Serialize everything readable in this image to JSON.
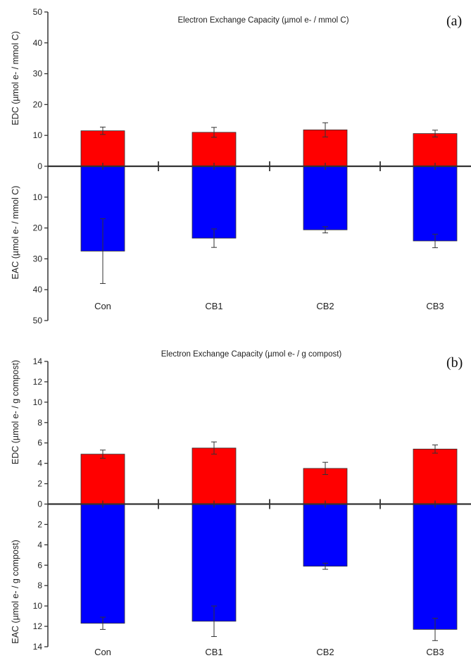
{
  "chart_data": [
    {
      "type": "bar",
      "panel_label": "(a)",
      "title": "Electron Exchange Capacity (µmol e- / mmol C)",
      "ylabel_top": "EDC (µmol e- / mmol C)",
      "ylabel_bottom": "EAC (µmol e- / mmol C)",
      "categories": [
        "Con",
        "CB1",
        "CB2",
        "CB3"
      ],
      "ylim": [
        -50,
        50
      ],
      "yticks": [
        50,
        40,
        30,
        20,
        10,
        0,
        10,
        20,
        30,
        40,
        50
      ],
      "grid": false,
      "series": [
        {
          "name": "EDC",
          "color": "#ff0000",
          "values": [
            11.5,
            11.0,
            11.8,
            10.6
          ],
          "err": [
            1.2,
            1.6,
            2.3,
            1.1
          ]
        },
        {
          "name": "EAC",
          "color": "#0000ff",
          "values": [
            -27.5,
            -23.3,
            -20.6,
            -24.2
          ],
          "err": [
            10.5,
            3.0,
            1.0,
            2.2
          ]
        }
      ]
    },
    {
      "type": "bar",
      "panel_label": "(b)",
      "title": "Electron Exchange Capacity (µmol e- / g compost)",
      "ylabel_top": "EDC (µmol e- / g compost)",
      "ylabel_bottom": "EAC (µmol e- / g compost)",
      "categories": [
        "Con",
        "CB1",
        "CB2",
        "CB3"
      ],
      "ylim": [
        -14,
        14
      ],
      "yticks": [
        14,
        12,
        10,
        8,
        6,
        4,
        2,
        0,
        2,
        4,
        6,
        8,
        10,
        12,
        14
      ],
      "grid": false,
      "series": [
        {
          "name": "EDC",
          "color": "#ff0000",
          "values": [
            4.9,
            5.5,
            3.5,
            5.4
          ],
          "err": [
            0.4,
            0.6,
            0.6,
            0.4
          ]
        },
        {
          "name": "EAC",
          "color": "#0000ff",
          "values": [
            -11.7,
            -11.5,
            -6.1,
            -12.3
          ],
          "err": [
            0.6,
            1.5,
            0.3,
            1.1
          ]
        }
      ]
    }
  ]
}
